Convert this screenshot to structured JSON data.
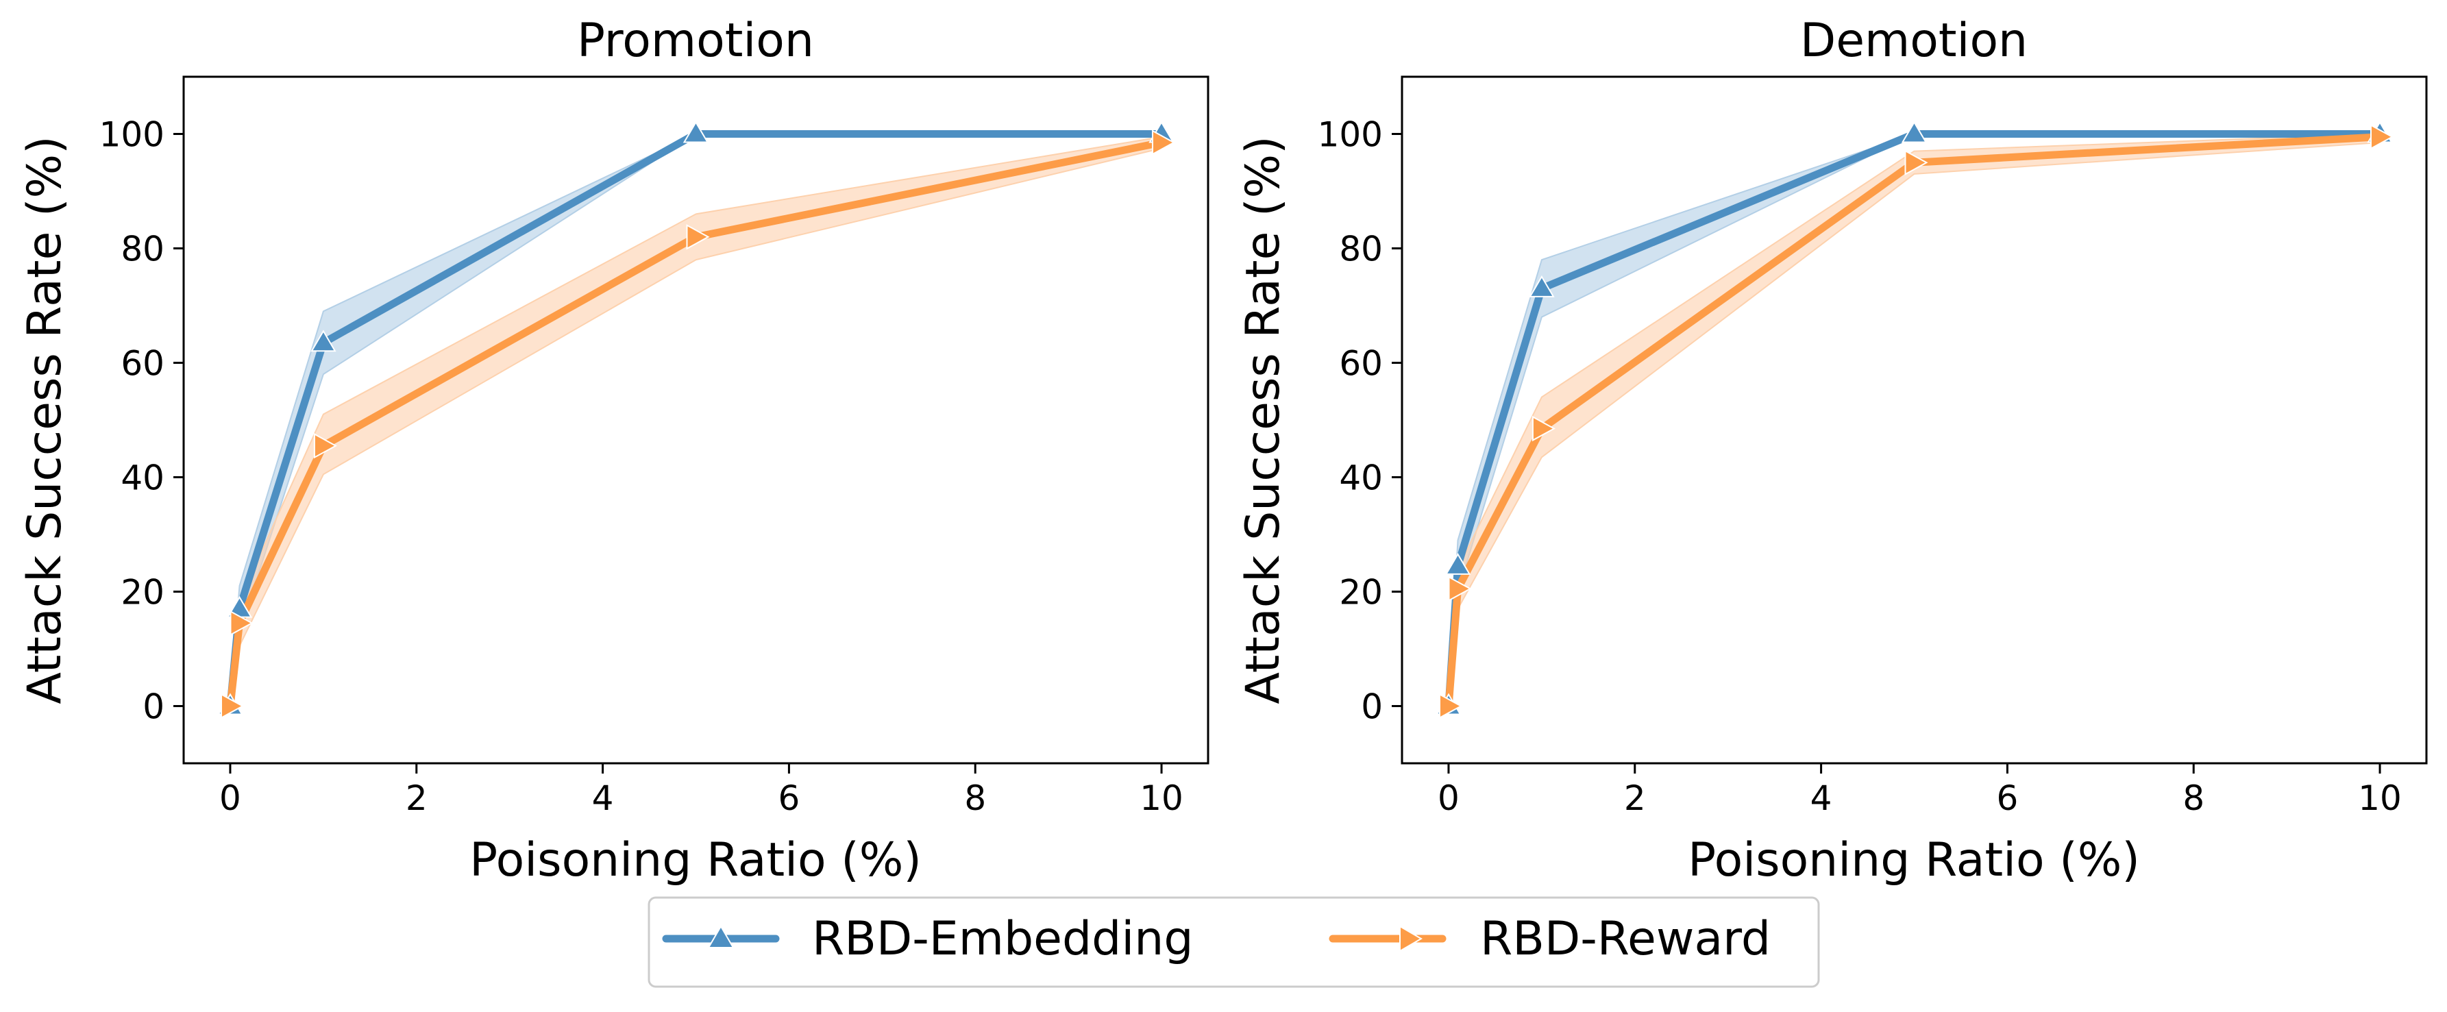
{
  "chart_data": [
    {
      "type": "line",
      "title": "Promotion",
      "xlabel": "Poisoning Ratio (%)",
      "ylabel": "Attack Success Rate (%)",
      "xlim": [
        -0.5,
        10.5
      ],
      "ylim": [
        -10,
        110
      ],
      "xticks": [
        0,
        2,
        4,
        6,
        8,
        10
      ],
      "yticks": [
        0,
        20,
        40,
        60,
        80,
        100
      ],
      "x": [
        0,
        0.1,
        1,
        5,
        10
      ],
      "series": [
        {
          "name": "RBD-Embedding",
          "color": "#4d8fc2",
          "band_color": "#b3cfe6",
          "marker": "triangle-up",
          "values": [
            0,
            17,
            63.5,
            100,
            100
          ],
          "lower": [
            0,
            13,
            58,
            100,
            100
          ],
          "upper": [
            0,
            21,
            69,
            100,
            100
          ]
        },
        {
          "name": "RBD-Reward",
          "color": "#fd9c47",
          "band_color": "#fdd1ad",
          "marker": "triangle-right",
          "values": [
            0,
            14.5,
            45.5,
            82,
            98.5
          ],
          "lower": [
            0,
            10.5,
            40.5,
            78,
            97.5
          ],
          "upper": [
            0,
            18.5,
            51,
            86,
            99.5
          ]
        }
      ]
    },
    {
      "type": "line",
      "title": "Demotion",
      "xlabel": "Poisoning Ratio (%)",
      "ylabel": "Attack Success Rate (%)",
      "xlim": [
        -0.5,
        10.5
      ],
      "ylim": [
        -10,
        110
      ],
      "xticks": [
        0,
        2,
        4,
        6,
        8,
        10
      ],
      "yticks": [
        0,
        20,
        40,
        60,
        80,
        100
      ],
      "x": [
        0,
        0.1,
        1,
        5,
        10
      ],
      "series": [
        {
          "name": "RBD-Embedding",
          "color": "#4d8fc2",
          "band_color": "#b3cfe6",
          "marker": "triangle-up",
          "values": [
            0,
            24.5,
            73,
            100,
            100
          ],
          "lower": [
            0,
            20,
            68,
            100,
            100
          ],
          "upper": [
            0,
            29,
            78,
            100,
            100
          ]
        },
        {
          "name": "RBD-Reward",
          "color": "#fd9c47",
          "band_color": "#fdd1ad",
          "marker": "triangle-right",
          "values": [
            0,
            20.5,
            48.5,
            95,
            99.5
          ],
          "lower": [
            0,
            17,
            43.5,
            93,
            98.5
          ],
          "upper": [
            0,
            24,
            54,
            97,
            100
          ]
        }
      ]
    }
  ],
  "legend": {
    "position": "bottom-center",
    "entries": [
      "RBD-Embedding",
      "RBD-Reward"
    ]
  }
}
